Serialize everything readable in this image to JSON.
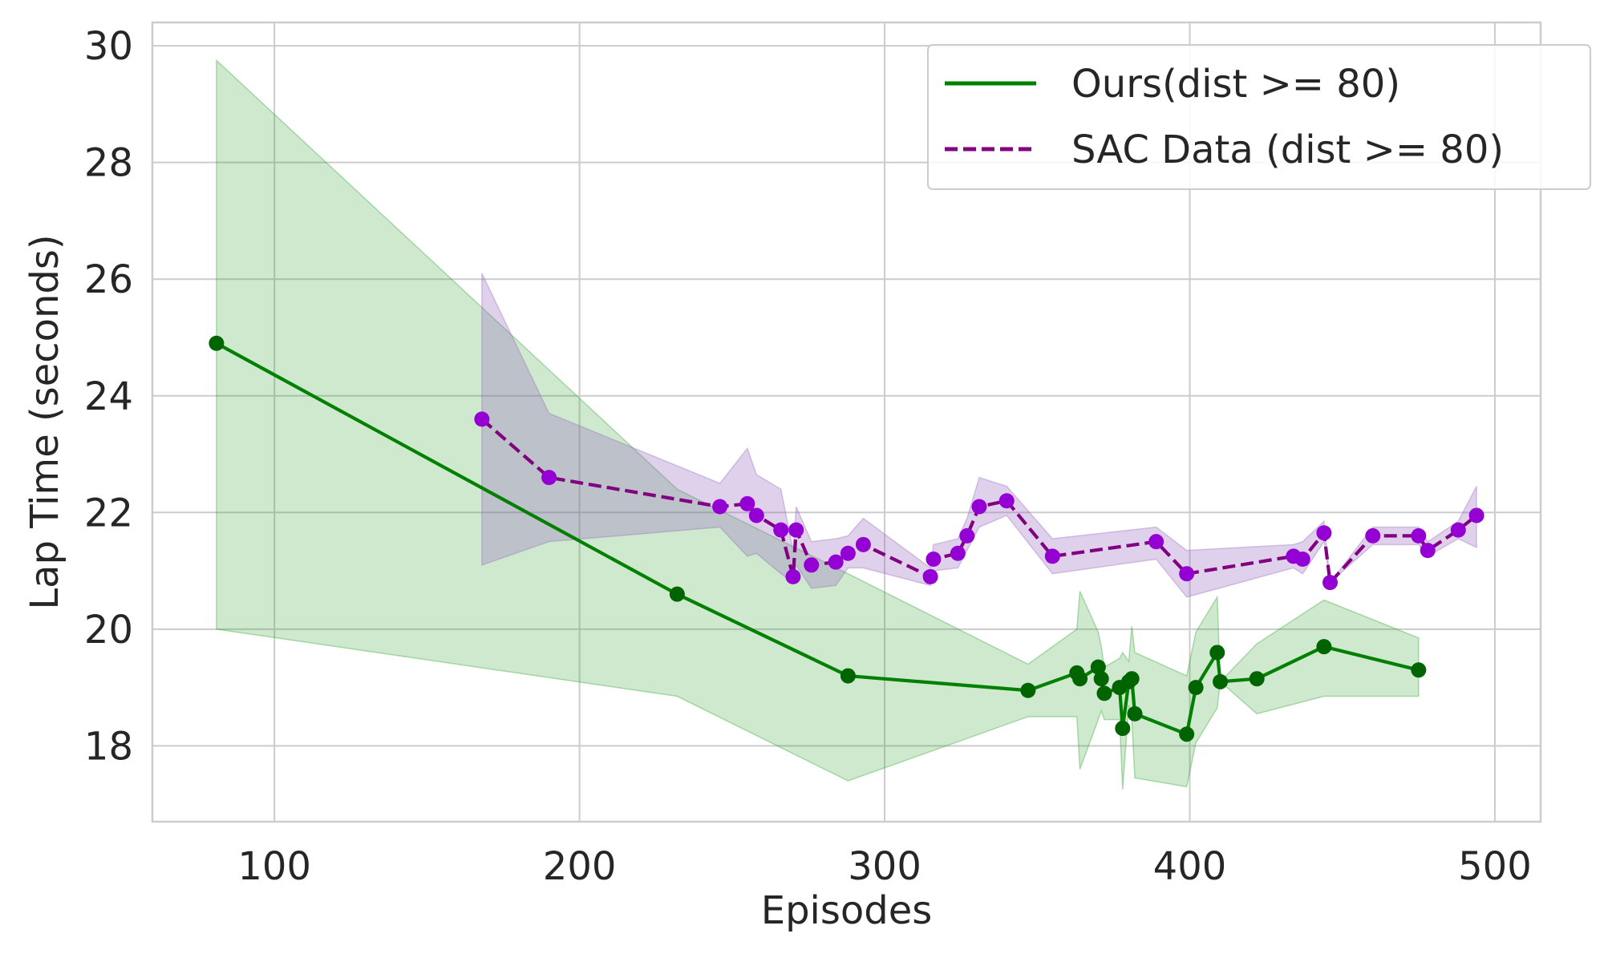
{
  "chart_data": {
    "type": "line",
    "title": "",
    "xlabel": "Episodes",
    "ylabel": "Lap Time (seconds)",
    "xlim": [
      60,
      515
    ],
    "ylim": [
      16.7,
      30.4
    ],
    "xticks": [
      100,
      200,
      300,
      400,
      500
    ],
    "yticks": [
      18,
      20,
      22,
      24,
      26,
      28,
      30
    ],
    "grid": true,
    "legend_position": "top-right",
    "series": [
      {
        "name": "Ours(dist >= 80)",
        "style": "solid",
        "color": "#008000",
        "fill_color": "#2ca02c",
        "marker_color": "#006400",
        "points": [
          {
            "x": 81,
            "y": 24.9,
            "lo": 20.0,
            "hi": 29.75
          },
          {
            "x": 232,
            "y": 20.6,
            "lo": 18.85,
            "hi": 22.4
          },
          {
            "x": 288,
            "y": 19.2,
            "lo": 17.4,
            "hi": 20.95
          },
          {
            "x": 347,
            "y": 18.95,
            "lo": 18.5,
            "hi": 19.4
          },
          {
            "x": 363,
            "y": 19.25,
            "lo": 18.5,
            "hi": 20.0
          },
          {
            "x": 364,
            "y": 19.15,
            "lo": 17.6,
            "hi": 20.65
          },
          {
            "x": 370,
            "y": 19.35,
            "lo": 18.45,
            "hi": 19.95
          },
          {
            "x": 371,
            "y": 19.15,
            "lo": 18.6,
            "hi": 19.7
          },
          {
            "x": 372,
            "y": 18.9,
            "lo": 18.45,
            "hi": 19.35
          },
          {
            "x": 377,
            "y": 19.0,
            "lo": 18.45,
            "hi": 19.5
          },
          {
            "x": 378,
            "y": 18.3,
            "lo": 17.25,
            "hi": 19.6
          },
          {
            "x": 380,
            "y": 19.1,
            "lo": 18.7,
            "hi": 19.45
          },
          {
            "x": 381,
            "y": 19.15,
            "lo": 18.45,
            "hi": 20.05
          },
          {
            "x": 382,
            "y": 18.55,
            "lo": 17.45,
            "hi": 19.6
          },
          {
            "x": 399,
            "y": 18.2,
            "lo": 17.3,
            "hi": 19.2
          },
          {
            "x": 402,
            "y": 19.0,
            "lo": 18.05,
            "hi": 19.95
          },
          {
            "x": 409,
            "y": 19.6,
            "lo": 18.65,
            "hi": 20.55
          },
          {
            "x": 410,
            "y": 19.1,
            "lo": 19.1,
            "hi": 19.1
          },
          {
            "x": 422,
            "y": 19.15,
            "lo": 18.55,
            "hi": 19.75
          },
          {
            "x": 444,
            "y": 19.7,
            "lo": 18.85,
            "hi": 20.5
          },
          {
            "x": 475,
            "y": 19.3,
            "lo": 18.85,
            "hi": 19.85
          }
        ]
      },
      {
        "name": "SAC Data (dist >= 80)",
        "style": "dashed",
        "color": "#800080",
        "fill_color": "#9467bd",
        "marker_color": "#9400d3",
        "points": [
          {
            "x": 168,
            "y": 23.6,
            "lo": 21.1,
            "hi": 26.1
          },
          {
            "x": 190,
            "y": 22.6,
            "lo": 21.5,
            "hi": 23.7
          },
          {
            "x": 246,
            "y": 22.1,
            "lo": 21.75,
            "hi": 22.5
          },
          {
            "x": 255,
            "y": 22.15,
            "lo": 21.25,
            "hi": 23.1
          },
          {
            "x": 258,
            "y": 21.95,
            "lo": 21.3,
            "hi": 22.65
          },
          {
            "x": 266,
            "y": 21.7,
            "lo": 20.95,
            "hi": 22.4
          },
          {
            "x": 270,
            "y": 20.9,
            "lo": 20.8,
            "hi": 21.35
          },
          {
            "x": 271,
            "y": 21.7,
            "lo": 21.1,
            "hi": 22.1
          },
          {
            "x": 276,
            "y": 21.1,
            "lo": 20.7,
            "hi": 21.5
          },
          {
            "x": 284,
            "y": 21.15,
            "lo": 20.75,
            "hi": 21.55
          },
          {
            "x": 288,
            "y": 21.3,
            "lo": 21.05,
            "hi": 21.6
          },
          {
            "x": 293,
            "y": 21.45,
            "lo": 21.05,
            "hi": 21.9
          },
          {
            "x": 315,
            "y": 20.9,
            "lo": 20.75,
            "hi": 21.05
          },
          {
            "x": 316,
            "y": 21.2,
            "lo": 21.0,
            "hi": 21.45
          },
          {
            "x": 324,
            "y": 21.3,
            "lo": 21.05,
            "hi": 21.55
          },
          {
            "x": 327,
            "y": 21.6,
            "lo": 21.35,
            "hi": 21.9
          },
          {
            "x": 331,
            "y": 22.1,
            "lo": 21.75,
            "hi": 22.6
          },
          {
            "x": 340,
            "y": 22.2,
            "lo": 21.95,
            "hi": 22.45
          },
          {
            "x": 355,
            "y": 21.25,
            "lo": 20.95,
            "hi": 21.55
          },
          {
            "x": 389,
            "y": 21.5,
            "lo": 21.2,
            "hi": 21.75
          },
          {
            "x": 399,
            "y": 20.95,
            "lo": 20.55,
            "hi": 21.35
          },
          {
            "x": 434,
            "y": 21.25,
            "lo": 21.05,
            "hi": 21.45
          },
          {
            "x": 437,
            "y": 21.2,
            "lo": 20.95,
            "hi": 21.5
          },
          {
            "x": 444,
            "y": 21.65,
            "lo": 21.5,
            "hi": 21.85
          },
          {
            "x": 446,
            "y": 20.8,
            "lo": 20.8,
            "hi": 20.8
          },
          {
            "x": 460,
            "y": 21.6,
            "lo": 21.45,
            "hi": 21.75
          },
          {
            "x": 475,
            "y": 21.6,
            "lo": 21.45,
            "hi": 21.75
          },
          {
            "x": 478,
            "y": 21.35,
            "lo": 21.25,
            "hi": 21.5
          },
          {
            "x": 488,
            "y": 21.7,
            "lo": 21.55,
            "hi": 21.85
          },
          {
            "x": 494,
            "y": 21.95,
            "lo": 21.4,
            "hi": 22.45
          }
        ]
      }
    ]
  }
}
